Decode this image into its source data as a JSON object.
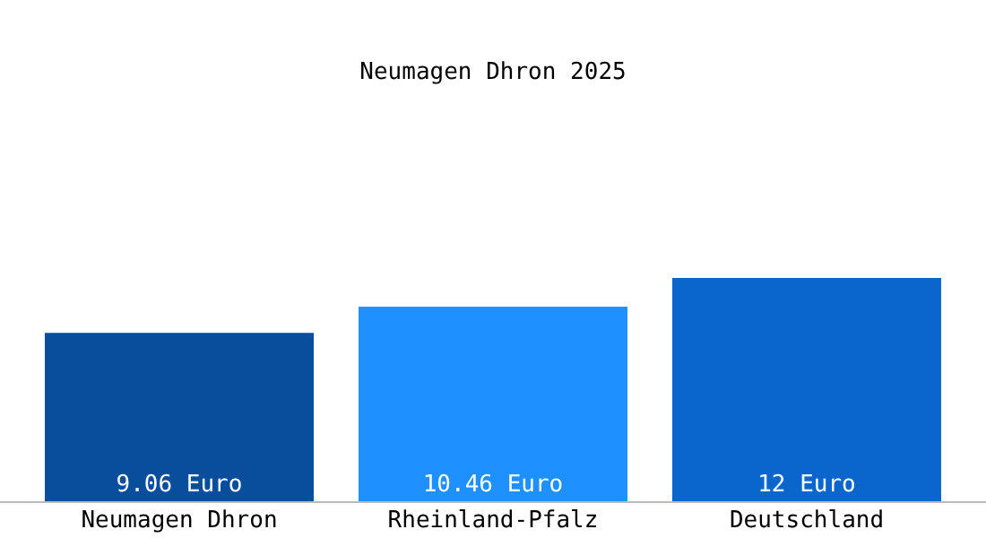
{
  "chart_data": {
    "type": "bar",
    "title": "Neumagen Dhron 2025",
    "categories": [
      "Neumagen Dhron",
      "Rheinland-Pfalz",
      "Deutschland"
    ],
    "values": [
      9.06,
      10.46,
      12
    ],
    "colors": [
      "#084e9c",
      "#1e90ff",
      "#0a66cc"
    ],
    "value_labels": [
      "9.06 Euro",
      "10.46 Euro",
      "12 Euro"
    ]
  }
}
